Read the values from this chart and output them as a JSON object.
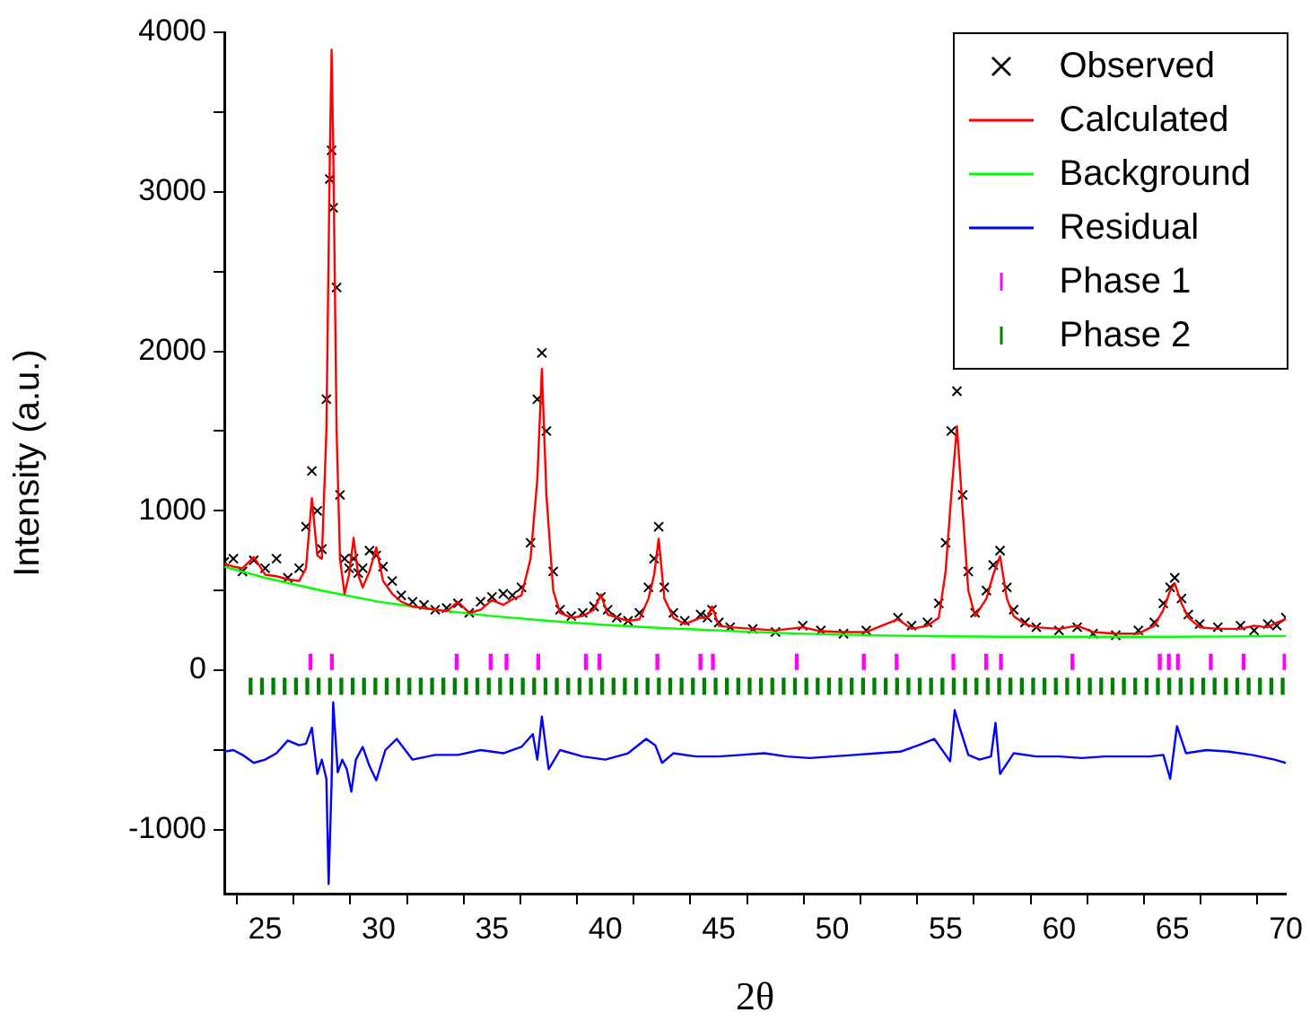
{
  "chart_data": {
    "type": "scatter",
    "xlabel": "2θ",
    "ylabel": "Intensity (a.u.)",
    "xlim": [
      23.2,
      70
    ],
    "ylim": [
      -1400,
      4000
    ],
    "xticks": [
      25,
      {
        "value": 27.5,
        "label": null
      },
      30,
      {
        "value": 32.5,
        "label": null
      },
      35,
      {
        "value": 37.5,
        "label": null
      },
      40,
      {
        "value": 42.5,
        "label": null
      },
      45,
      {
        "value": 47.5,
        "label": null
      },
      50,
      {
        "value": 52.5,
        "label": null
      },
      55,
      {
        "value": 57.5,
        "label": null
      },
      60,
      {
        "value": 62.5,
        "label": null
      },
      65,
      {
        "value": 67.5,
        "label": null
      },
      70
    ],
    "yticks": [
      -1000,
      {
        "value": -500,
        "label": null
      },
      0,
      {
        "value": 500,
        "label": null
      },
      1000,
      {
        "value": 1500,
        "label": null
      },
      2000,
      {
        "value": 2500,
        "label": null
      },
      3000,
      {
        "value": 3500,
        "label": null
      },
      4000
    ],
    "grid": false,
    "legend": "top right",
    "x": [
      23.2,
      23.6,
      24.0,
      24.5,
      25.0,
      25.5,
      26.0,
      26.5,
      26.8,
      27.06,
      27.3,
      27.5,
      27.7,
      27.85,
      27.93,
      28.0,
      28.15,
      28.3,
      28.5,
      28.7,
      28.9,
      29.1,
      29.3,
      29.6,
      29.9,
      30.2,
      30.6,
      31.0,
      31.5,
      32.0,
      32.5,
      33.0,
      33.5,
      34.0,
      34.5,
      35.0,
      35.5,
      35.9,
      36.3,
      36.7,
      37.0,
      37.2,
      37.4,
      37.7,
      38.0,
      38.5,
      39.0,
      39.5,
      39.8,
      40.1,
      40.5,
      41.0,
      41.5,
      41.9,
      42.15,
      42.35,
      42.6,
      43.0,
      43.5,
      44.2,
      44.5,
      44.7,
      45.0,
      45.5,
      46.5,
      47.5,
      48.7,
      49.5,
      50.5,
      51.5,
      52.9,
      53.5,
      54.2,
      54.7,
      55.0,
      55.25,
      55.5,
      55.75,
      56.0,
      56.3,
      56.8,
      57.1,
      57.4,
      57.7,
      58.0,
      58.5,
      59.0,
      60.0,
      60.8,
      61.5,
      62.5,
      63.5,
      64.2,
      64.6,
      64.9,
      65.1,
      65.4,
      65.7,
      66.2,
      67.0,
      68.0,
      68.6,
      69.2,
      69.6,
      70.0
    ],
    "series": [
      {
        "name": "Observed",
        "marker": "cross",
        "color": "#000000",
        "values": [
          680,
          700,
          620,
          690,
          640,
          700,
          580,
          640,
          900,
          1250,
          1000,
          760,
          1700,
          3080,
          3260,
          2900,
          2400,
          1100,
          700,
          640,
          700,
          610,
          640,
          750,
          720,
          650,
          560,
          470,
          430,
          410,
          380,
          390,
          420,
          360,
          430,
          460,
          480,
          470,
          520,
          800,
          1700,
          1990,
          1500,
          620,
          380,
          340,
          360,
          400,
          460,
          380,
          330,
          310,
          360,
          520,
          700,
          900,
          520,
          360,
          310,
          350,
          330,
          380,
          300,
          270,
          260,
          240,
          280,
          250,
          230,
          250,
          330,
          280,
          300,
          420,
          800,
          1500,
          1750,
          1100,
          620,
          360,
          500,
          660,
          750,
          520,
          380,
          300,
          270,
          250,
          270,
          230,
          220,
          250,
          300,
          420,
          520,
          580,
          450,
          350,
          290,
          270,
          280,
          250,
          290,
          280,
          330
        ]
      },
      {
        "name": "Calculated",
        "type": "line",
        "marker": "none",
        "color": "#ff0000",
        "values": [
          670,
          650,
          640,
          710,
          600,
          590,
          570,
          560,
          640,
          1080,
          720,
          700,
          1500,
          3200,
          3890,
          3300,
          1500,
          700,
          480,
          600,
          830,
          600,
          520,
          620,
          770,
          560,
          480,
          430,
          400,
          390,
          380,
          370,
          430,
          360,
          380,
          440,
          410,
          445,
          470,
          700,
          1200,
          1890,
          1100,
          500,
          360,
          330,
          340,
          380,
          475,
          350,
          330,
          310,
          320,
          450,
          600,
          825,
          450,
          330,
          290,
          330,
          330,
          400,
          280,
          270,
          260,
          250,
          270,
          245,
          240,
          240,
          320,
          260,
          280,
          330,
          620,
          1100,
          1530,
          1000,
          500,
          340,
          450,
          600,
          715,
          450,
          340,
          290,
          270,
          260,
          280,
          240,
          230,
          230,
          280,
          380,
          500,
          545,
          420,
          330,
          270,
          260,
          260,
          280,
          270,
          300,
          320
        ]
      },
      {
        "name": "Background",
        "type": "line",
        "marker": "none",
        "color": "#00ff00",
        "x": [
          23.2,
          25,
          27.5,
          30,
          32.5,
          35,
          37.5,
          40,
          42.5,
          45,
          47.5,
          50,
          52.5,
          55,
          57.5,
          60,
          62.5,
          65,
          67.5,
          70
        ],
        "values": [
          650,
          580,
          500,
          430,
          380,
          340,
          310,
          285,
          265,
          250,
          235,
          225,
          218,
          213,
          210,
          210,
          210,
          210,
          212,
          215
        ]
      },
      {
        "name": "Residual",
        "type": "line",
        "marker": "none",
        "color": "#0000ff",
        "x": [
          23.2,
          23.6,
          24.0,
          24.5,
          25.0,
          25.5,
          26.0,
          26.5,
          26.8,
          27.06,
          27.3,
          27.5,
          27.7,
          27.8,
          27.93,
          28.0,
          28.2,
          28.4,
          28.6,
          28.8,
          29.0,
          29.3,
          29.6,
          29.9,
          30.3,
          30.8,
          31.5,
          32.5,
          33.5,
          34.5,
          35.5,
          36.3,
          36.8,
          37.0,
          37.2,
          37.5,
          38.0,
          39.0,
          40.0,
          41.0,
          41.8,
          42.2,
          42.5,
          43.0,
          44.0,
          45.0,
          46.0,
          47.0,
          48.0,
          49.0,
          50.0,
          51.0,
          52.0,
          53.0,
          53.8,
          54.5,
          55.0,
          55.2,
          55.4,
          55.6,
          56.0,
          56.5,
          57.0,
          57.2,
          57.4,
          58.0,
          59.0,
          60.0,
          61.0,
          62.0,
          63.0,
          64.0,
          64.6,
          64.9,
          65.2,
          65.6,
          66.5,
          67.5,
          68.5,
          69.5,
          70.0
        ],
        "values": [
          -510,
          -500,
          -530,
          -580,
          -560,
          -520,
          -440,
          -470,
          -460,
          -360,
          -650,
          -560,
          -680,
          -1340,
          -700,
          -200,
          -640,
          -560,
          -620,
          -760,
          -560,
          -480,
          -600,
          -690,
          -500,
          -430,
          -560,
          -530,
          -530,
          -500,
          -520,
          -480,
          -400,
          -560,
          -290,
          -620,
          -500,
          -540,
          -560,
          -520,
          -430,
          -470,
          -580,
          -520,
          -540,
          -540,
          -530,
          -520,
          -540,
          -550,
          -540,
          -530,
          -520,
          -510,
          -470,
          -430,
          -530,
          -570,
          -250,
          -350,
          -530,
          -560,
          -540,
          -330,
          -650,
          -520,
          -540,
          -540,
          -550,
          -540,
          -540,
          -540,
          -530,
          -680,
          -350,
          -520,
          -500,
          -510,
          -530,
          -560,
          -580
        ]
      },
      {
        "name": "Phase 1",
        "type": "bar",
        "color": "#ff00ff",
        "x": [
          27.06,
          28.0,
          33.5,
          35.0,
          35.7,
          37.1,
          39.2,
          39.8,
          42.35,
          44.25,
          44.8,
          48.5,
          51.45,
          52.9,
          55.4,
          56.85,
          57.5,
          60.65,
          64.5,
          64.9,
          65.3,
          66.75,
          68.2,
          70.0
        ],
        "base": [
          0,
          0,
          0,
          0,
          0,
          0,
          0,
          0,
          0,
          0,
          0,
          0,
          0,
          0,
          0,
          0,
          0,
          0,
          0,
          0,
          0,
          0,
          0,
          0
        ],
        "values": [
          100,
          100,
          100,
          100,
          100,
          100,
          100,
          100,
          100,
          100,
          100,
          100,
          100,
          100,
          100,
          100,
          100,
          100,
          100,
          100,
          100,
          100,
          100,
          100
        ]
      },
      {
        "name": "Phase 2",
        "type": "bar",
        "color": "#008000",
        "base": [
          -150,
          -150,
          -150,
          -150,
          -150,
          -150,
          -150,
          -150,
          -150,
          -150,
          -150,
          -150,
          -150,
          -150,
          -150,
          -150,
          -150,
          -150,
          -150,
          -150,
          -150,
          -150,
          -150,
          -150,
          -150,
          -150,
          -150,
          -150,
          -150,
          -150,
          -150,
          -150,
          -150,
          -150,
          -150,
          -150,
          -150,
          -150,
          -150,
          -150,
          -150,
          -150,
          -150,
          -150,
          -150,
          -150,
          -150,
          -150,
          -150,
          -150,
          -150,
          -150,
          -150,
          -150,
          -150,
          -150,
          -150,
          -150,
          -150,
          -150,
          -150,
          -150,
          -150,
          -150,
          -150,
          -150,
          -150,
          -150,
          -150,
          -150,
          -150,
          -150,
          -150,
          -150,
          -150,
          -150,
          -150,
          -150,
          -150,
          -150,
          -150,
          -150,
          -150,
          -150,
          -150,
          -150,
          -150,
          -150,
          -150,
          -150,
          -150,
          -150
        ],
        "x": [
          24.3,
          24.8,
          25.3,
          25.8,
          26.3,
          26.8,
          27.3,
          27.8,
          28.3,
          28.8,
          29.3,
          29.8,
          30.3,
          30.8,
          31.3,
          31.8,
          32.3,
          32.8,
          33.3,
          33.8,
          34.3,
          34.8,
          35.3,
          35.8,
          36.3,
          36.8,
          37.3,
          37.8,
          38.3,
          38.8,
          39.3,
          39.8,
          40.3,
          40.8,
          41.3,
          41.8,
          42.3,
          42.8,
          43.3,
          43.8,
          44.3,
          44.8,
          45.3,
          45.8,
          46.3,
          46.8,
          47.3,
          47.8,
          48.3,
          48.8,
          49.3,
          49.8,
          50.3,
          50.8,
          51.3,
          51.8,
          52.3,
          52.8,
          53.3,
          53.8,
          54.3,
          54.8,
          55.3,
          55.8,
          56.3,
          56.8,
          57.3,
          57.8,
          58.3,
          58.8,
          59.3,
          59.8,
          60.3,
          60.8,
          61.3,
          61.8,
          62.3,
          62.8,
          63.3,
          63.8,
          64.3,
          64.8,
          65.3,
          65.8,
          66.3,
          66.8,
          67.3,
          67.8,
          68.3,
          68.8,
          69.3,
          69.8
        ],
        "values": [
          100,
          100,
          100,
          100,
          100,
          100,
          100,
          100,
          100,
          100,
          100,
          100,
          100,
          100,
          100,
          100,
          100,
          100,
          100,
          100,
          100,
          100,
          100,
          100,
          100,
          100,
          100,
          100,
          100,
          100,
          100,
          100,
          100,
          100,
          100,
          100,
          100,
          100,
          100,
          100,
          100,
          100,
          100,
          100,
          100,
          100,
          100,
          100,
          100,
          100,
          100,
          100,
          100,
          100,
          100,
          100,
          100,
          100,
          100,
          100,
          100,
          100,
          100,
          100,
          100,
          100,
          100,
          100,
          100,
          100,
          100,
          100,
          100,
          100,
          100,
          100,
          100,
          100,
          100,
          100,
          100,
          100,
          100,
          100,
          100,
          100,
          100,
          100,
          100,
          100,
          100,
          100
        ]
      }
    ]
  }
}
